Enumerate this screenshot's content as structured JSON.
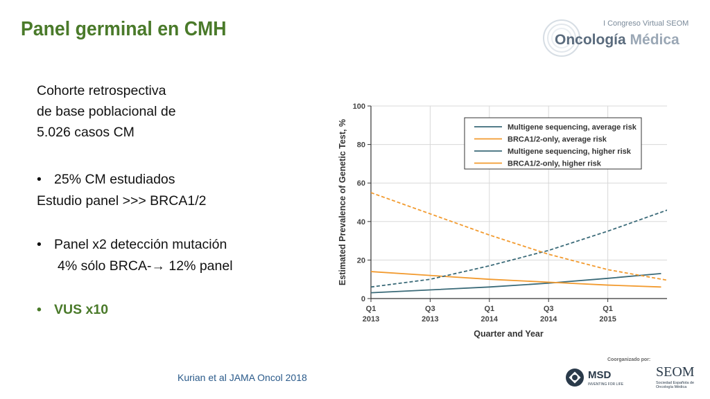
{
  "slide": {
    "title": "Panel germinal en CMH",
    "intro_lines": [
      "Cohorte retrospectiva",
      "de base poblacional de",
      "5.026 casos CM"
    ],
    "bullet1": "25% CM estudiados",
    "line2": "Estudio panel >>> BRCA1/2",
    "bullet2": "Panel x2 detección mutación",
    "line4_a": "4% sólo BRCA-",
    "line4_arrow": "→",
    "line4_b": " 12% panel",
    "bullet3": "VUS x10",
    "bullet_symbol": "•",
    "citation": "Kurian et al JAMA Oncol 2018"
  },
  "logo": {
    "top": "I Congreso Virtual SEOM",
    "main_o": "O",
    "main_a": "ncología ",
    "main_b": "Médica"
  },
  "sponsors": {
    "label": "Coorganizado por:",
    "msd": "MSD",
    "msd_sub": "INVENTING FOR LIFE",
    "seom": "SEOM",
    "seom_sub": "Sociedad Española de Oncología Médica"
  },
  "colors": {
    "title": "#4a7a2a",
    "multigene": "#3a6a78",
    "brca": "#f29a2e",
    "citation": "#2a5a8a"
  },
  "chart_data": {
    "type": "line",
    "xlabel": "Quarter and Year",
    "ylabel": "Estimated Prevalence of Genetic Test, %",
    "ylim": [
      0,
      100
    ],
    "yticks": [
      0,
      20,
      40,
      60,
      80,
      100
    ],
    "xlim": [
      0,
      10
    ],
    "xticks": [
      {
        "x": 0,
        "label1": "Q1",
        "label2": "2013"
      },
      {
        "x": 2,
        "label1": "Q3",
        "label2": "2013"
      },
      {
        "x": 4,
        "label1": "Q1",
        "label2": "2014"
      },
      {
        "x": 6,
        "label1": "Q3",
        "label2": "2014"
      },
      {
        "x": 8,
        "label1": "Q1",
        "label2": "2015"
      }
    ],
    "grid": true,
    "legend": "top-right",
    "series": [
      {
        "name": "Multigene sequencing, average risk",
        "color": "#3a6a78",
        "dash": false,
        "x": [
          0,
          2,
          4,
          6,
          8,
          9.8
        ],
        "y": [
          3,
          4.5,
          6,
          8,
          10.5,
          13
        ]
      },
      {
        "name": "BRCA1/2-only, average risk",
        "color": "#f29a2e",
        "dash": false,
        "x": [
          0,
          2,
          4,
          6,
          8,
          9.8
        ],
        "y": [
          14,
          12,
          10,
          8.5,
          7,
          6
        ]
      },
      {
        "name": "Multigene sequencing, higher risk",
        "color": "#3a6a78",
        "dash": true,
        "x": [
          0,
          2,
          4,
          6,
          8,
          10.2
        ],
        "y": [
          6,
          10,
          17,
          25,
          35,
          47
        ]
      },
      {
        "name": "BRCA1/2-only, higher risk",
        "color": "#f29a2e",
        "dash": true,
        "x": [
          0,
          2,
          4,
          6,
          8,
          10.2
        ],
        "y": [
          55,
          44,
          33,
          23,
          15,
          9
        ]
      }
    ]
  }
}
